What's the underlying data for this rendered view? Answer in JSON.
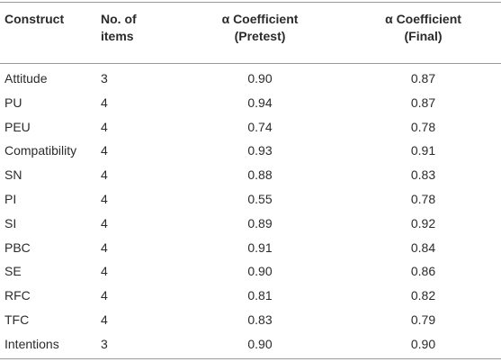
{
  "table": {
    "headers": {
      "construct": "Construct",
      "items_line1": "No. of",
      "items_line2": "items",
      "pretest_line1": "α Coefficient",
      "pretest_line2": "(Pretest)",
      "final_line1": "α Coefficient",
      "final_line2": "(Final)"
    },
    "rows": [
      {
        "construct": "Attitude",
        "items": "3",
        "pretest": "0.90",
        "final": "0.87"
      },
      {
        "construct": "PU",
        "items": "4",
        "pretest": "0.94",
        "final": "0.87"
      },
      {
        "construct": "PEU",
        "items": "4",
        "pretest": "0.74",
        "final": "0.78"
      },
      {
        "construct": "Compatibility",
        "items": "4",
        "pretest": "0.93",
        "final": "0.91"
      },
      {
        "construct": "SN",
        "items": "4",
        "pretest": "0.88",
        "final": "0.83"
      },
      {
        "construct": "PI",
        "items": "4",
        "pretest": "0.55",
        "final": "0.78"
      },
      {
        "construct": "SI",
        "items": "4",
        "pretest": "0.89",
        "final": "0.92"
      },
      {
        "construct": "PBC",
        "items": "4",
        "pretest": "0.91",
        "final": "0.84"
      },
      {
        "construct": "SE",
        "items": "4",
        "pretest": "0.90",
        "final": "0.86"
      },
      {
        "construct": "RFC",
        "items": "4",
        "pretest": "0.81",
        "final": "0.82"
      },
      {
        "construct": "TFC",
        "items": "4",
        "pretest": "0.83",
        "final": "0.79"
      },
      {
        "construct": "Intentions",
        "items": "3",
        "pretest": "0.90",
        "final": "0.90"
      }
    ]
  }
}
